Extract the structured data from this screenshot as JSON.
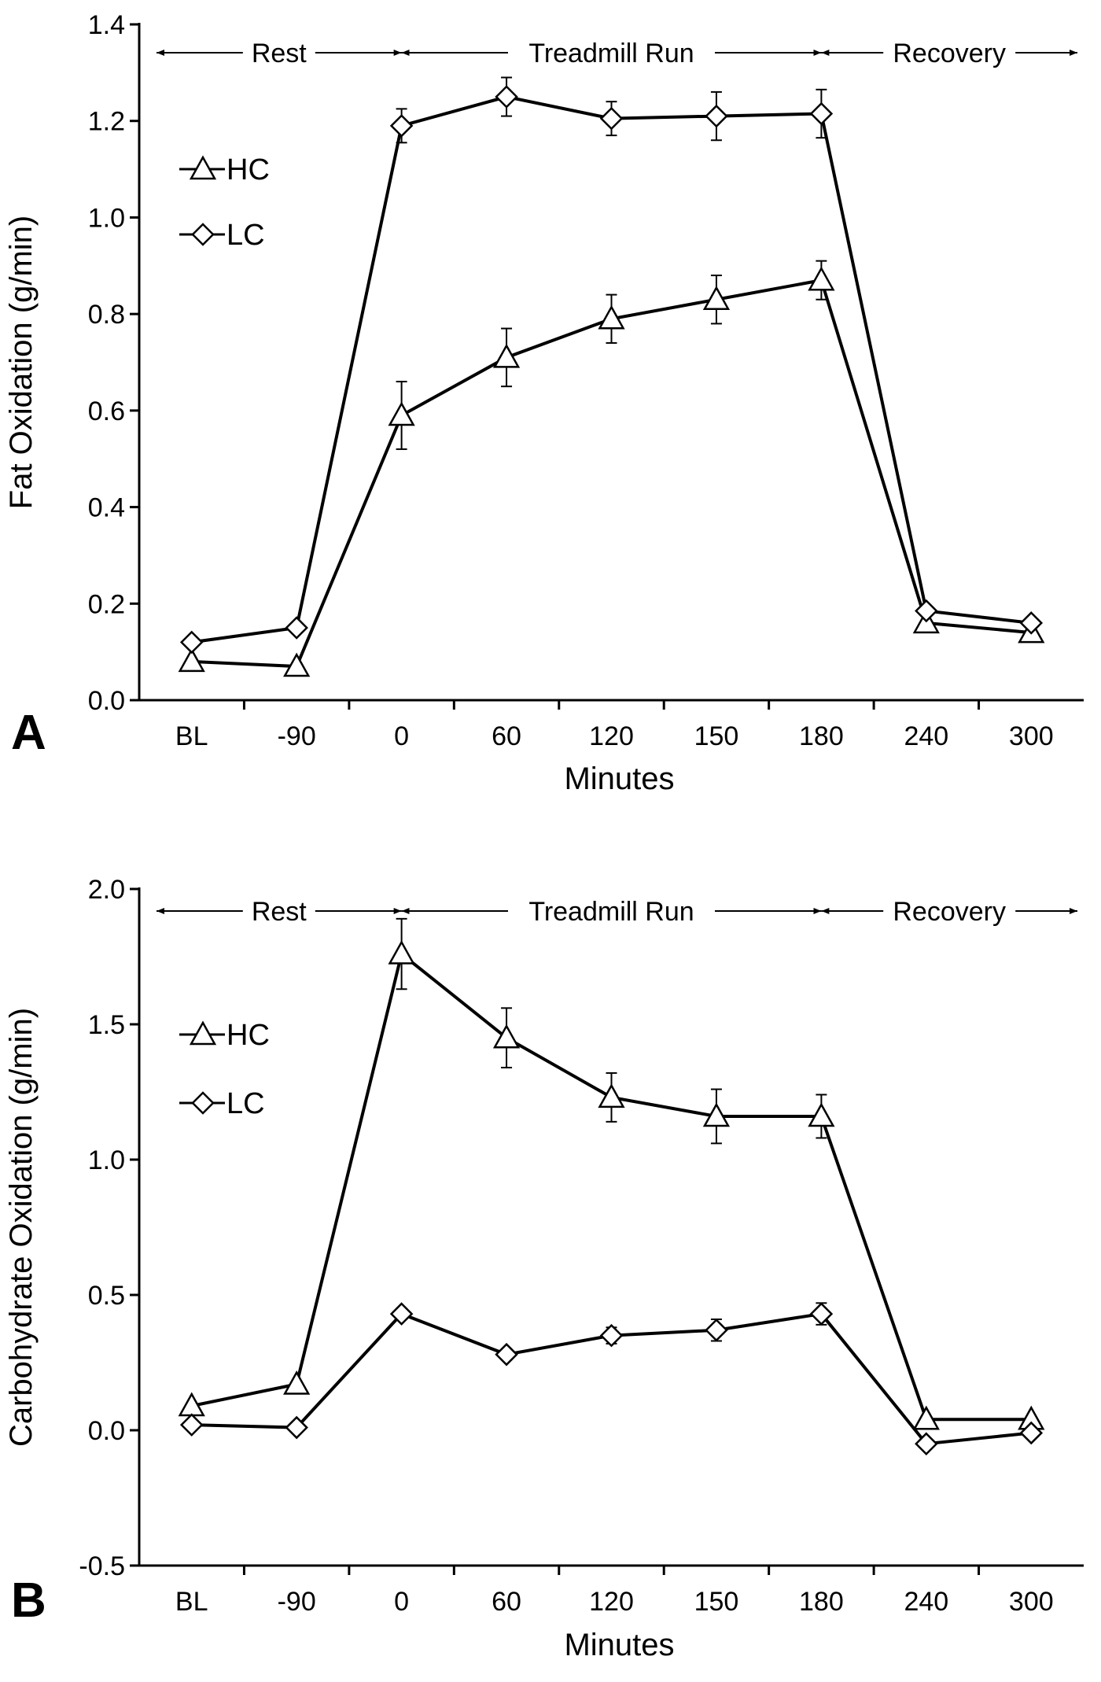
{
  "chart_data": [
    {
      "type": "line",
      "panel": "A",
      "categories": [
        "BL",
        "-90",
        "0",
        "60",
        "120",
        "150",
        "180",
        "240",
        "300"
      ],
      "xlabel": "Minutes",
      "ylabel": "Fat Oxidation (g/min)",
      "ylim": [
        0.0,
        1.4
      ],
      "yticks": [
        "0.0",
        "0.2",
        "0.4",
        "0.6",
        "0.8",
        "1.0",
        "1.2",
        "1.4"
      ],
      "grid": false,
      "legend_position": "upper-left",
      "phases": [
        {
          "label": "Rest",
          "from": "BL",
          "to": "0"
        },
        {
          "label": "Treadmill Run",
          "from": "0",
          "to": "180"
        },
        {
          "label": "Recovery",
          "from": "180",
          "to": "300"
        }
      ],
      "series": [
        {
          "name": "HC",
          "marker": "triangle",
          "values": [
            0.08,
            0.07,
            0.59,
            0.71,
            0.79,
            0.83,
            0.87,
            0.16,
            0.14
          ],
          "errors": [
            0,
            0,
            0.07,
            0.06,
            0.05,
            0.05,
            0.04,
            0,
            0
          ]
        },
        {
          "name": "LC",
          "marker": "diamond",
          "values": [
            0.12,
            0.15,
            1.19,
            1.25,
            1.205,
            1.21,
            1.215,
            0.185,
            0.16
          ],
          "errors": [
            0,
            0,
            0.035,
            0.04,
            0.035,
            0.05,
            0.05,
            0,
            0
          ]
        }
      ]
    },
    {
      "type": "line",
      "panel": "B",
      "categories": [
        "BL",
        "-90",
        "0",
        "60",
        "120",
        "150",
        "180",
        "240",
        "300"
      ],
      "xlabel": "Minutes",
      "ylabel": "Carbohydrate Oxidation (g/min)",
      "ylim": [
        -0.5,
        2.0
      ],
      "yticks": [
        "-0.5",
        "0.0",
        "0.5",
        "1.0",
        "1.5",
        "2.0"
      ],
      "grid": false,
      "legend_position": "upper-left",
      "phases": [
        {
          "label": "Rest",
          "from": "BL",
          "to": "0"
        },
        {
          "label": "Treadmill Run",
          "from": "0",
          "to": "180"
        },
        {
          "label": "Recovery",
          "from": "180",
          "to": "300"
        }
      ],
      "series": [
        {
          "name": "HC",
          "marker": "triangle",
          "values": [
            0.09,
            0.17,
            1.76,
            1.45,
            1.23,
            1.16,
            1.16,
            0.04,
            0.04
          ],
          "errors": [
            0,
            0,
            0.13,
            0.11,
            0.09,
            0.1,
            0.08,
            0,
            0
          ]
        },
        {
          "name": "LC",
          "marker": "diamond",
          "values": [
            0.02,
            0.01,
            0.43,
            0.28,
            0.35,
            0.37,
            0.43,
            -0.05,
            -0.01
          ],
          "errors": [
            0,
            0,
            0.02,
            0.02,
            0.03,
            0.04,
            0.04,
            0,
            0
          ]
        }
      ]
    }
  ]
}
